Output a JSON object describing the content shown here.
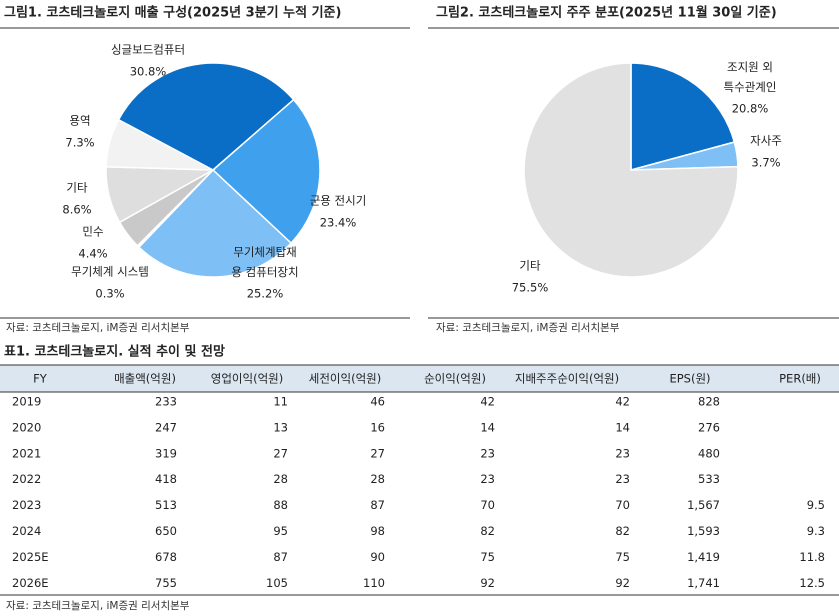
{
  "chart_data": [
    {
      "type": "pie",
      "title": "그림1. 코츠테크놀로지 매출 구성(2025년 3분기 누적 기준)",
      "categories": [
        "싱글보드컴퓨터",
        "군용 전시기",
        "무기체계탑재\n용 컴퓨터장치",
        "무기체계 시스템",
        "민수",
        "기타",
        "용역"
      ],
      "values": [
        30.8,
        23.4,
        25.2,
        0.3,
        4.4,
        8.6,
        7.3
      ],
      "value_labels": [
        "30.8%",
        "23.4%",
        "25.2%",
        "0.3%",
        "4.4%",
        "8.6%",
        "7.3%"
      ],
      "colors": [
        "#0b6ec6",
        "#3fa1ee",
        "#7ec0f6",
        "#ffffff",
        "#c9c9c9",
        "#dedede",
        "#f2f2f2"
      ],
      "source": "자료: 코츠테크놀로지, iM증권 리서치본부"
    },
    {
      "type": "pie",
      "title": "그림2. 코츠테크놀로지 주주 분포(2025년 11월 30일 기준)",
      "categories": [
        "조지원 외\n특수관계인",
        "자사주",
        "기타"
      ],
      "values": [
        20.8,
        3.7,
        75.5
      ],
      "value_labels": [
        "20.8%",
        "3.7%",
        "75.5%"
      ],
      "colors": [
        "#0b6ec6",
        "#7ec0f6",
        "#e1e1e1"
      ],
      "source": "자료: 코츠테크놀로지, iM증권 리서치본부"
    }
  ],
  "table": {
    "title": "표1. 코츠테크놀로지. 실적 추이 및 전망",
    "header": [
      "FY",
      "매출액(억원)",
      "영업이익(억원)",
      "세전이익(억원)",
      "순이익(억원)",
      "지배주주순이익(억원)",
      "EPS(원)",
      "PER(배)"
    ],
    "rows": [
      [
        "2019",
        "233",
        "11",
        "46",
        "42",
        "42",
        "828",
        null
      ],
      [
        "2020",
        "247",
        "13",
        "16",
        "14",
        "14",
        "276",
        null
      ],
      [
        "2021",
        "319",
        "27",
        "27",
        "23",
        "23",
        "480",
        null
      ],
      [
        "2022",
        "418",
        "28",
        "28",
        "23",
        "23",
        "533",
        null
      ],
      [
        "2023",
        "513",
        "88",
        "87",
        "70",
        "70",
        "1,567",
        "9.5"
      ],
      [
        "2024",
        "650",
        "95",
        "98",
        "82",
        "82",
        "1,593",
        "9.3"
      ],
      [
        "2025E",
        "678",
        "87",
        "90",
        "75",
        "75",
        "1,419",
        "11.8"
      ],
      [
        "2026E",
        "755",
        "105",
        "110",
        "92",
        "92",
        "1,741",
        "12.5"
      ]
    ],
    "source": "자료: 코츠테크놀로지, iM증권 리서치본부"
  }
}
